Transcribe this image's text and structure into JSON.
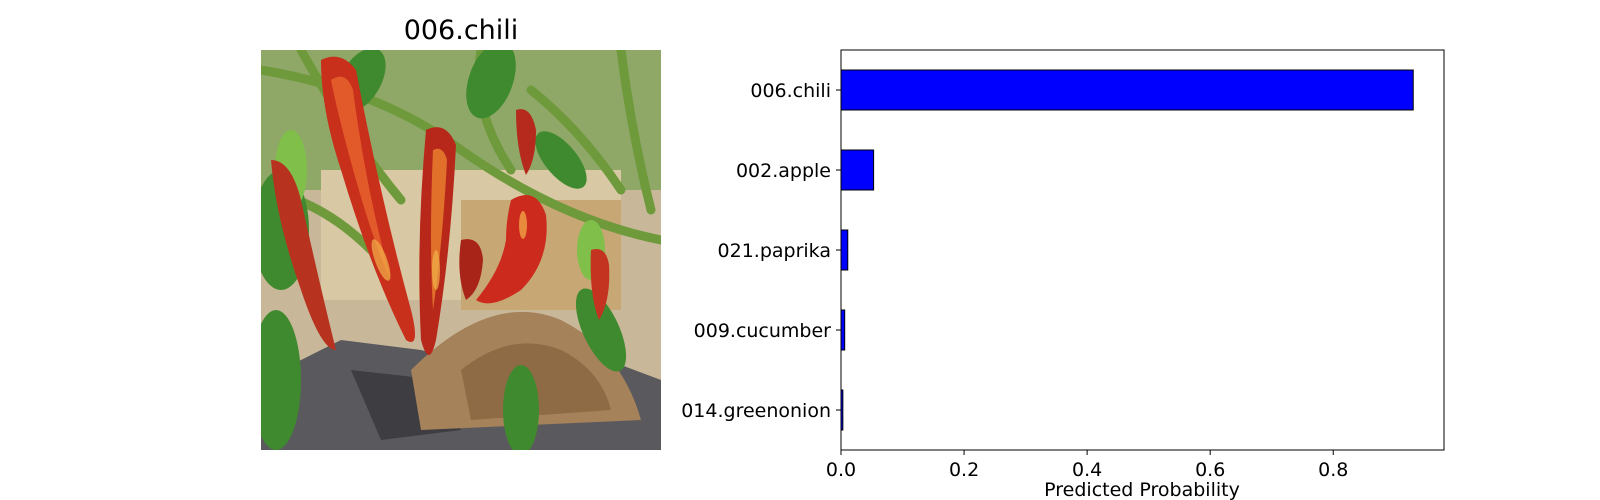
{
  "image_panel": {
    "title": "006.chili",
    "icon": "chili-pepper-plant-photo"
  },
  "chart_data": {
    "type": "bar",
    "orientation": "horizontal",
    "categories": [
      "006.chili",
      "002.apple",
      "021.paprika",
      "009.cucumber",
      "014.greenonion"
    ],
    "values": [
      0.93,
      0.053,
      0.011,
      0.006,
      0.003
    ],
    "title": "",
    "xlabel": "Predicted Probability",
    "ylabel": "",
    "xlim": [
      0,
      0.98
    ],
    "xticks": [
      "0.0",
      "0.2",
      "0.4",
      "0.6",
      "0.8"
    ],
    "grid": false,
    "bar_color": "#0000ff",
    "bar_edge_color": "#000000"
  }
}
